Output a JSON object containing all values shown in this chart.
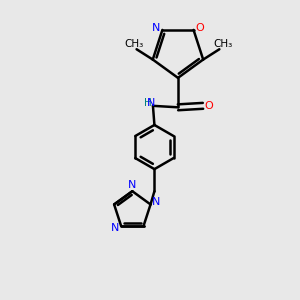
{
  "bg_color": "#e8e8e8",
  "bond_color": "#000000",
  "n_color": "#0000ff",
  "o_color": "#ff0000",
  "nh_color": "#008080",
  "line_width": 1.8,
  "figsize": [
    3.0,
    3.0
  ],
  "dpi": 100,
  "xlim": [
    0,
    1
  ],
  "ylim": [
    0,
    1
  ]
}
